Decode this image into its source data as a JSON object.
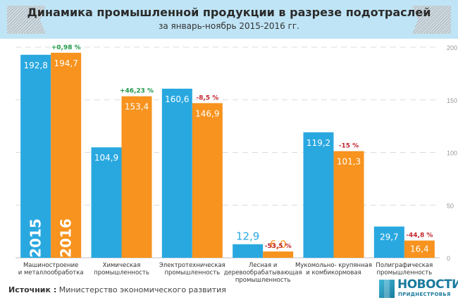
{
  "header": {
    "title": "Динамика промышленной продукции в разрезе подотраслей",
    "subtitle": "за январь-ноябрь 2015-2016 гг."
  },
  "footer": {
    "source_label": "Источник :",
    "source_text": "Министерство экономического развития",
    "logo_main": "НОВОСТИ",
    "logo_sub": "ПРИДНЕСТРОВЬЯ"
  },
  "chart_data": {
    "type": "bar",
    "title": "Динамика промышленной продукции в разрезе подотраслей",
    "subtitle": "за январь-ноябрь 2015-2016 гг.",
    "xlabel": "",
    "ylabel": "",
    "ylim": [
      0,
      200
    ],
    "yticks": [
      0,
      50,
      100,
      150,
      200
    ],
    "grid": true,
    "axis_side": "right",
    "categories": [
      [
        "Машиностроение",
        "и металлообработка"
      ],
      [
        "Химическая",
        "промышленность"
      ],
      [
        "Электротехническая",
        "промышленность"
      ],
      [
        "Лесная и",
        "деревообрабатывающая",
        "промышленность"
      ],
      [
        "Мукомольно- крупянная",
        "и комбикормовая"
      ],
      [
        "Полиграфическая",
        "промышленность"
      ]
    ],
    "series": [
      {
        "name": "2015",
        "color": "#29a8e0",
        "values": [
          192.8,
          104.9,
          160.6,
          12.9,
          119.2,
          29.7
        ],
        "labels": [
          "192,8",
          "104,9",
          "160,6",
          "12,9",
          "119,2",
          "29,7"
        ]
      },
      {
        "name": "2016",
        "color": "#f7931e",
        "values": [
          194.7,
          153.4,
          146.9,
          6.0,
          101.3,
          16.4
        ],
        "labels": [
          "194,7",
          "153,4",
          "146,9",
          "6,0",
          "101,3",
          "16,4"
        ]
      }
    ],
    "changes": [
      "+0,98 %",
      "+46,23 %",
      "-8,5 %",
      "-53,5 %",
      "-15 %",
      "-44,8 %"
    ],
    "change_colors": {
      "positive": "#1e9a4a",
      "negative": "#c1272d"
    },
    "legend": [
      "2015",
      "2016"
    ],
    "legend_placement": "inside-first-group-bottom"
  }
}
